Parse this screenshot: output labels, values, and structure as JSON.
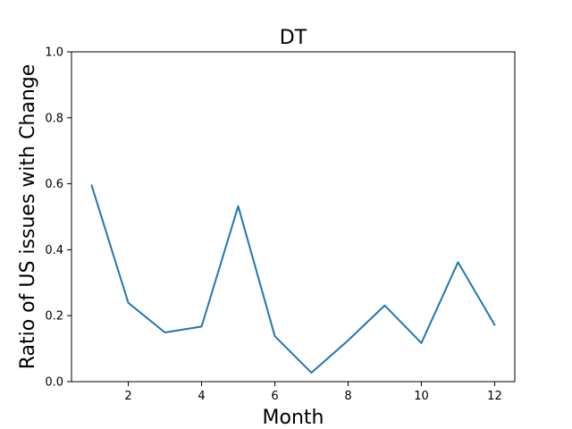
{
  "chart_data": {
    "type": "line",
    "title": "DT",
    "xlabel": "Month",
    "ylabel": "Ratio of US issues with Change",
    "xlim": [
      0.45,
      12.55
    ],
    "ylim": [
      0.0,
      1.0
    ],
    "x_ticks": [
      2,
      4,
      6,
      8,
      10,
      12
    ],
    "y_ticks": [
      0.0,
      0.2,
      0.4,
      0.6,
      0.8,
      1.0
    ],
    "x_tick_labels": [
      "2",
      "4",
      "6",
      "8",
      "10",
      "12"
    ],
    "y_tick_labels": [
      "0.0",
      "0.2",
      "0.4",
      "0.6",
      "0.8",
      "1.0"
    ],
    "grid": false,
    "series": [
      {
        "color": "#1f77b4",
        "x": [
          1,
          2,
          3,
          4,
          5,
          6,
          7,
          8,
          9,
          10,
          11,
          12
        ],
        "values": [
          0.595,
          0.239,
          0.149,
          0.167,
          0.532,
          0.138,
          0.027,
          0.125,
          0.231,
          0.117,
          0.362,
          0.172
        ]
      }
    ]
  }
}
